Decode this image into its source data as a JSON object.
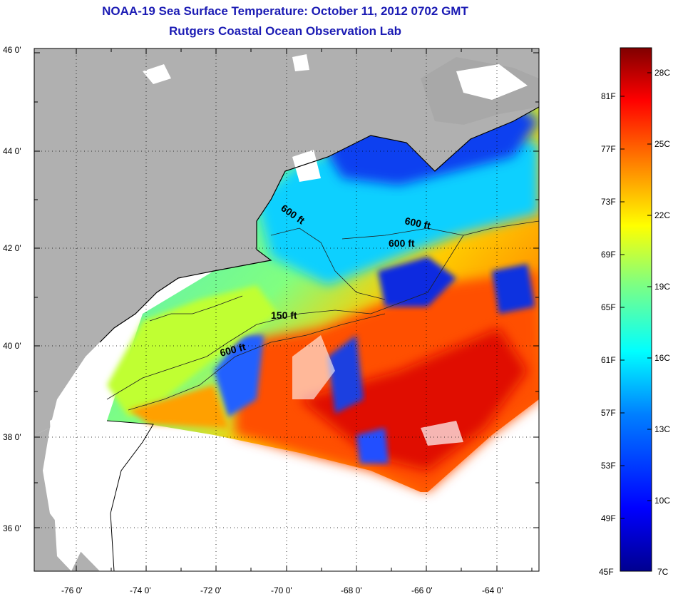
{
  "title": {
    "line1": "NOAA-19 Sea Surface Temperature:  October 11, 2012 0702 GMT",
    "line2": "Rutgers Coastal Ocean Observation Lab"
  },
  "map": {
    "lat_labels": [
      "46 0'",
      "44 0'",
      "42 0'",
      "40 0'",
      "38 0'",
      "36 0'"
    ],
    "lon_labels": [
      "-76 0'",
      "-74 0'",
      "-72 0'",
      "-70 0'",
      "-68 0'",
      "-66 0'",
      "-64 0'"
    ],
    "contour_labels": [
      "600 ft",
      "600 ft",
      "600 ft",
      "150 ft",
      "600 ft"
    ],
    "colors": {
      "land": "#b0b0b0",
      "cloud": "#ffffff",
      "frame": "#000000"
    }
  },
  "colorbar": {
    "fahrenheit_labels": [
      "81F",
      "77F",
      "73F",
      "69F",
      "65F",
      "61F",
      "57F",
      "53F",
      "49F",
      "45F"
    ],
    "celsius_labels": [
      "28C",
      "25C",
      "22C",
      "19C",
      "16C",
      "13C",
      "10C",
      "7C"
    ],
    "gradient": [
      "#00008f",
      "#0000ff",
      "#0080ff",
      "#00ffff",
      "#80ff80",
      "#ffff00",
      "#ff8000",
      "#ff0000",
      "#800000"
    ]
  }
}
